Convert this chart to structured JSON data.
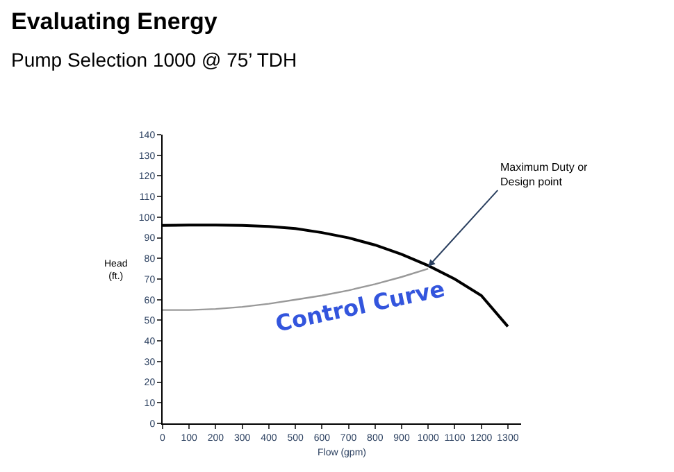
{
  "chart_data": {
    "type": "line",
    "title": "Evaluating Energy",
    "subtitle": "Pump Selection 1000 @ 75’ TDH",
    "xlabel": "Flow (gpm)",
    "ylabel": "Head\n(ft.)",
    "x": [
      0,
      100,
      200,
      300,
      400,
      500,
      600,
      700,
      800,
      900,
      1000,
      1100,
      1200,
      1300
    ],
    "series": [
      {
        "color": "#000000",
        "values": [
          96,
          96.2,
          96.2,
          96,
          95.5,
          94.5,
          92.5,
          90,
          86.5,
          82,
          76.5,
          70,
          62,
          47
        ]
      },
      {
        "color": "#999999",
        "values": [
          55,
          55,
          55.5,
          56.5,
          58,
          60,
          62,
          64.5,
          67.5,
          71,
          75,
          null,
          null,
          null
        ]
      }
    ],
    "annotations": [
      {
        "text": "Maximum Duty or\nDesign point",
        "x": 1000,
        "y": 76
      },
      "Control Curve"
    ],
    "xlim": [
      0,
      1350
    ],
    "ylim": [
      0,
      140
    ],
    "xticks": [
      0,
      100,
      200,
      300,
      400,
      500,
      600,
      700,
      800,
      900,
      1000,
      1100,
      1200,
      1300
    ],
    "yticks": [
      0,
      10,
      20,
      30,
      40,
      50,
      60,
      70,
      80,
      90,
      100,
      110,
      120,
      130,
      140
    ],
    "marker": "none",
    "line_style": "solid"
  }
}
